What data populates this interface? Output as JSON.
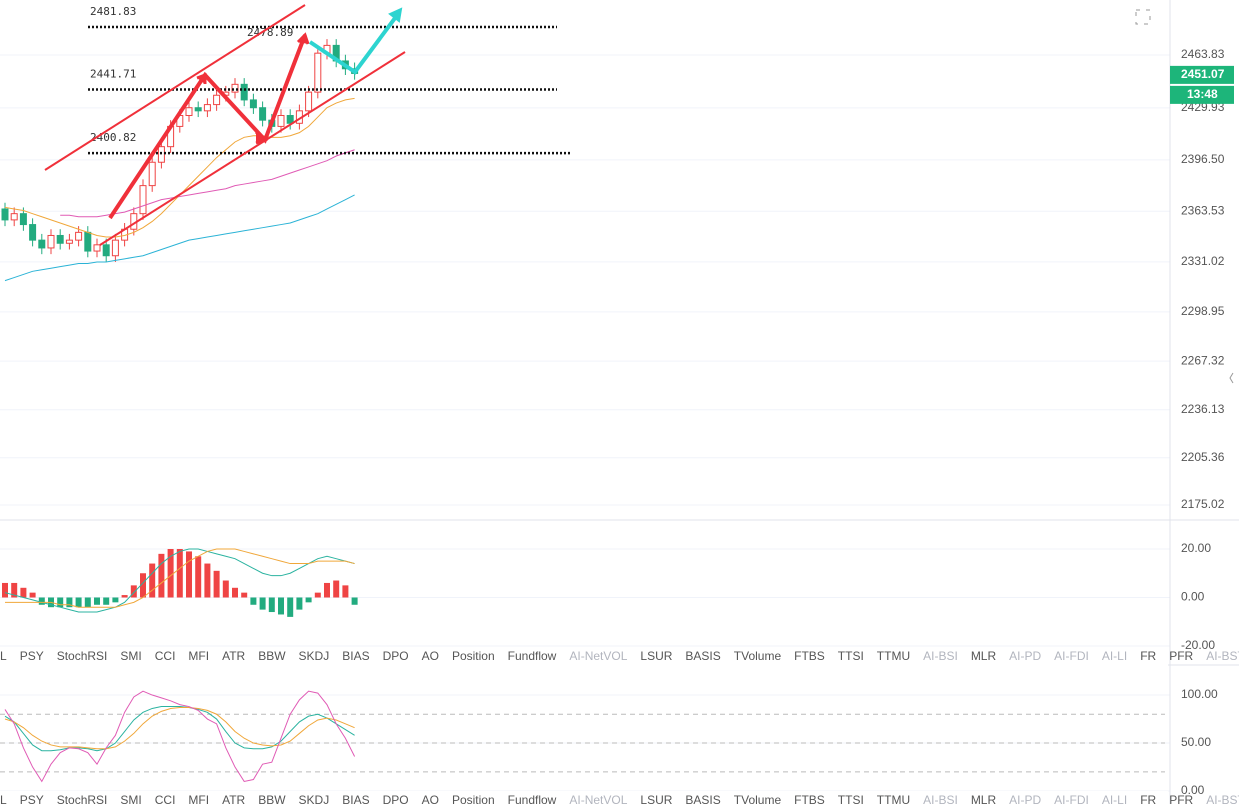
{
  "chart_data": [
    {
      "type": "candlestick",
      "open": [
        2365,
        2358,
        2362,
        2355,
        2345,
        2340,
        2348,
        2343,
        2345,
        2350,
        2338,
        2342,
        2335,
        2345,
        2352,
        2362,
        2380,
        2395,
        2405,
        2418,
        2425,
        2430,
        2428,
        2432,
        2438,
        2440,
        2445,
        2435,
        2430,
        2422,
        2418,
        2425,
        2420,
        2428,
        2440,
        2465,
        2470,
        2460,
        2455
      ],
      "high": [
        2369,
        2366,
        2366,
        2359,
        2349,
        2352,
        2352,
        2349,
        2354,
        2354,
        2346,
        2346,
        2349,
        2356,
        2366,
        2384,
        2399,
        2409,
        2422,
        2429,
        2434,
        2434,
        2436,
        2442,
        2444,
        2449,
        2449,
        2439,
        2434,
        2426,
        2429,
        2429,
        2432,
        2444,
        2469,
        2474,
        2474,
        2464,
        2459
      ],
      "low": [
        2354,
        2354,
        2351,
        2341,
        2336,
        2336,
        2339,
        2339,
        2341,
        2334,
        2334,
        2331,
        2331,
        2341,
        2348,
        2358,
        2376,
        2391,
        2401,
        2414,
        2421,
        2424,
        2424,
        2428,
        2434,
        2436,
        2431,
        2426,
        2418,
        2414,
        2414,
        2416,
        2416,
        2424,
        2436,
        2461,
        2456,
        2451,
        2448
      ],
      "close": [
        2358,
        2362,
        2355,
        2345,
        2340,
        2348,
        2343,
        2345,
        2350,
        2338,
        2342,
        2335,
        2345,
        2352,
        2362,
        2380,
        2395,
        2405,
        2418,
        2425,
        2430,
        2428,
        2432,
        2438,
        2440,
        2445,
        2435,
        2430,
        2422,
        2418,
        2425,
        2420,
        2428,
        2440,
        2465,
        2470,
        2460,
        2455,
        2452
      ],
      "up_color": "#ef4444",
      "down_color": "#22ab7f",
      "series": [
        {
          "color": "#f0a73a",
          "values": [
            2366,
            2365,
            2364,
            2362,
            2360,
            2358,
            2356,
            2354,
            2352,
            2350,
            2348,
            2347,
            2347,
            2348,
            2350,
            2353,
            2357,
            2362,
            2368,
            2374,
            2380,
            2386,
            2392,
            2398,
            2403,
            2408,
            2411,
            2412,
            2412,
            2411,
            2411,
            2412,
            2414,
            2418,
            2424,
            2430,
            2433,
            2435,
            2436
          ]
        },
        {
          "color": "#e05bb5",
          "values": [
            null,
            null,
            null,
            null,
            null,
            null,
            2361,
            2361,
            2360,
            2360,
            2360,
            2361,
            2362,
            2363,
            2365,
            2367,
            2369,
            2371,
            2372,
            2373,
            2374,
            2375,
            2376,
            2377,
            2378,
            2380,
            2381,
            2382,
            2383,
            2384,
            2386,
            2388,
            2390,
            2392,
            2394,
            2396,
            2399,
            2401,
            2403
          ]
        },
        {
          "color": "#2bb3d6",
          "values": [
            2319,
            2321,
            2323,
            2325,
            2326,
            2327,
            2328,
            2329,
            2330,
            2330,
            2331,
            2331,
            2332,
            2333,
            2334,
            2335,
            2337,
            2339,
            2341,
            2343,
            2345,
            2346,
            2347,
            2348,
            2349,
            2350,
            2351,
            2352,
            2353,
            2354,
            2355,
            2356,
            2358,
            2360,
            2362,
            2365,
            2368,
            2371,
            2374
          ]
        }
      ],
      "levels": [
        2481.83,
        2441.71,
        2400.82
      ],
      "annotation": 2478.89,
      "last_price": 2451.07,
      "countdown": "13:48",
      "ylim": [
        2165.39,
        2499.13
      ],
      "yticks": [
        2463.83,
        2429.93,
        {
          "value": 2396.5,
          "label": "2396.50"
        },
        2363.53,
        2331.02,
        2298.95,
        2267.32,
        2236.13,
        2205.36,
        2175.02
      ]
    },
    {
      "type": "macd",
      "values": [
        6,
        6,
        4,
        2,
        -3,
        -4,
        -4,
        -4,
        -4,
        -4,
        -3,
        -3,
        -2,
        1,
        5,
        10,
        14,
        18,
        20,
        20,
        19,
        17,
        14,
        11,
        7,
        4,
        2,
        -3,
        -5,
        -6,
        -7,
        -8,
        -5,
        -2,
        2,
        6,
        7,
        5,
        -3
      ],
      "up_color": "#ef4444",
      "down_color": "#22ab7f",
      "series": [
        {
          "color": "#2bb3a0",
          "values": [
            2,
            1,
            0,
            -1,
            -2,
            -3,
            -4,
            -5,
            -6,
            -6,
            -6,
            -5,
            -4,
            -2,
            2,
            6,
            10,
            14,
            17,
            19,
            20,
            20,
            19,
            18,
            17,
            16,
            14,
            12,
            10,
            9,
            9,
            10,
            12,
            14,
            16,
            17,
            16,
            15,
            14
          ]
        },
        {
          "color": "#f0a73a",
          "values": [
            -2,
            -2,
            -2,
            -2,
            -2,
            -2,
            -3,
            -3,
            -4,
            -4,
            -4,
            -4,
            -4,
            -3,
            -2,
            0,
            3,
            6,
            9,
            12,
            15,
            17,
            19,
            20,
            20,
            20,
            19,
            18,
            17,
            16,
            15,
            14,
            14,
            14,
            15,
            15,
            15,
            15,
            14
          ]
        }
      ],
      "ylim": [
        -27.84,
        31.96
      ],
      "yticks": [
        {
          "value": 20,
          "label": "20.00"
        },
        {
          "value": 0,
          "label": "0.00"
        },
        {
          "value": -20,
          "label": "-20.00"
        }
      ]
    },
    {
      "type": "line",
      "series": [
        {
          "color": "#2bb3a0",
          "values": [
            78,
            72,
            60,
            48,
            42,
            42,
            43,
            45,
            45,
            44,
            42,
            44,
            50,
            62,
            74,
            82,
            86,
            88,
            88,
            88,
            87,
            85,
            82,
            75,
            62,
            50,
            45,
            44,
            44,
            46,
            52,
            62,
            72,
            78,
            80,
            76,
            70,
            64,
            58
          ]
        },
        {
          "color": "#f0a73a",
          "values": [
            75,
            72,
            66,
            58,
            52,
            48,
            46,
            46,
            46,
            45,
            44,
            44,
            46,
            52,
            60,
            70,
            78,
            83,
            86,
            87,
            87,
            86,
            84,
            80,
            72,
            62,
            55,
            50,
            48,
            47,
            48,
            52,
            60,
            68,
            74,
            76,
            74,
            70,
            66
          ]
        },
        {
          "color": "#e05bb5",
          "values": [
            85,
            70,
            45,
            25,
            10,
            28,
            40,
            45,
            44,
            40,
            28,
            45,
            58,
            82,
            98,
            104,
            100,
            97,
            94,
            90,
            88,
            84,
            75,
            70,
            45,
            25,
            10,
            12,
            28,
            30,
            55,
            80,
            95,
            104,
            102,
            90,
            70,
            55,
            36
          ]
        }
      ],
      "hlines": [
        80,
        50,
        20
      ],
      "ylim": [
        -13.5,
        129.2
      ],
      "yticks": [
        {
          "value": 100,
          "label": "100.00"
        },
        {
          "value": 50,
          "label": "50.00"
        },
        {
          "value": 0,
          "label": "0.00"
        }
      ]
    }
  ],
  "tabs": [
    {
      "label": "L"
    },
    {
      "label": "PSY"
    },
    {
      "label": "StochRSI"
    },
    {
      "label": "SMI"
    },
    {
      "label": "CCI"
    },
    {
      "label": "MFI"
    },
    {
      "label": "ATR"
    },
    {
      "label": "BBW"
    },
    {
      "label": "SKDJ"
    },
    {
      "label": "BIAS"
    },
    {
      "label": "DPO"
    },
    {
      "label": "AO"
    },
    {
      "label": "Position"
    },
    {
      "label": "Fundflow"
    },
    {
      "label": "AI-NetVOL",
      "muted": true
    },
    {
      "label": "LSUR"
    },
    {
      "label": "BASIS"
    },
    {
      "label": "TVolume"
    },
    {
      "label": "FTBS"
    },
    {
      "label": "TTSI"
    },
    {
      "label": "TTMU"
    },
    {
      "label": "AI-BSI",
      "muted": true
    },
    {
      "label": "MLR"
    },
    {
      "label": "AI-PD",
      "muted": true
    },
    {
      "label": "AI-FDI",
      "muted": true
    },
    {
      "label": "AI-LI",
      "muted": true
    },
    {
      "label": "FR"
    },
    {
      "label": "PFR"
    },
    {
      "label": "AI-BST",
      "muted": true
    }
  ]
}
